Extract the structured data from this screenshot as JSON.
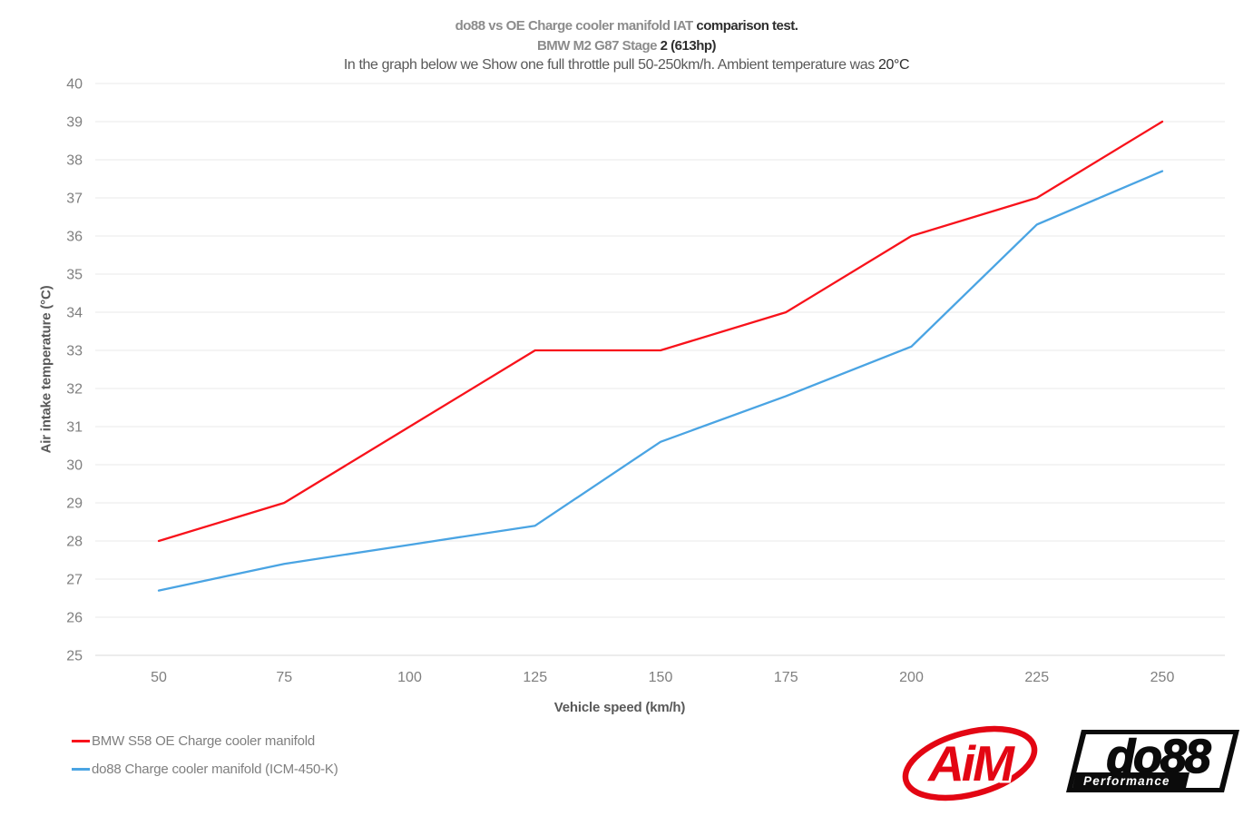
{
  "header": {
    "title_line1_gray": "do88 vs OE Charge cooler manifold IAT ",
    "title_line1_dark": "comparison test.",
    "title_line2_gray": "BMW M2 G87 Stage ",
    "title_line2_dark": "2  (613hp)",
    "title_line3_main": "In the graph below we Show one full throttle pull 50-250km/h. Ambient temperature was ",
    "title_line3_dark": "20°C"
  },
  "chart_data": {
    "type": "line",
    "x": [
      50,
      75,
      100,
      125,
      150,
      175,
      200,
      225,
      250
    ],
    "series": [
      {
        "name": "BMW S58 OE Charge cooler manifold",
        "color": "#f8121b",
        "values": [
          28,
          29,
          31,
          33,
          33,
          34,
          36,
          37,
          39
        ]
      },
      {
        "name": "do88 Charge cooler manifold (ICM-450-K)",
        "color": "#4aa4e3",
        "values": [
          26.7,
          27.4,
          27.9,
          28.4,
          30.6,
          31.8,
          33.1,
          36.3,
          37.7
        ]
      }
    ],
    "title": "do88 vs OE Charge cooler manifold IAT comparison test.",
    "subtitle": "BMW M2 G87 Stage 2 (613hp)",
    "note": "In the graph below we Show one full throttle pull 50-250km/h. Ambient temperature was 20°C",
    "xlabel": "Vehicle speed (km/h)",
    "ylabel": "Air intake temperature (°C)",
    "ylim": [
      25,
      40
    ],
    "ytick_step": 1,
    "xticks": [
      50,
      75,
      100,
      125,
      150,
      175,
      200,
      225,
      250
    ],
    "grid": "horizontal",
    "legend_position": "bottom-left"
  },
  "style": {
    "gridline_color": "#eaeaea",
    "axis_line_color": "#d9d9d9",
    "tick_label_color": "#7f7f7f",
    "line_width": 2.3
  },
  "logos": {
    "aim_text": "AiM",
    "aim_color": "#e30613",
    "do88_text": "do88",
    "do88_sub": "Performance"
  }
}
